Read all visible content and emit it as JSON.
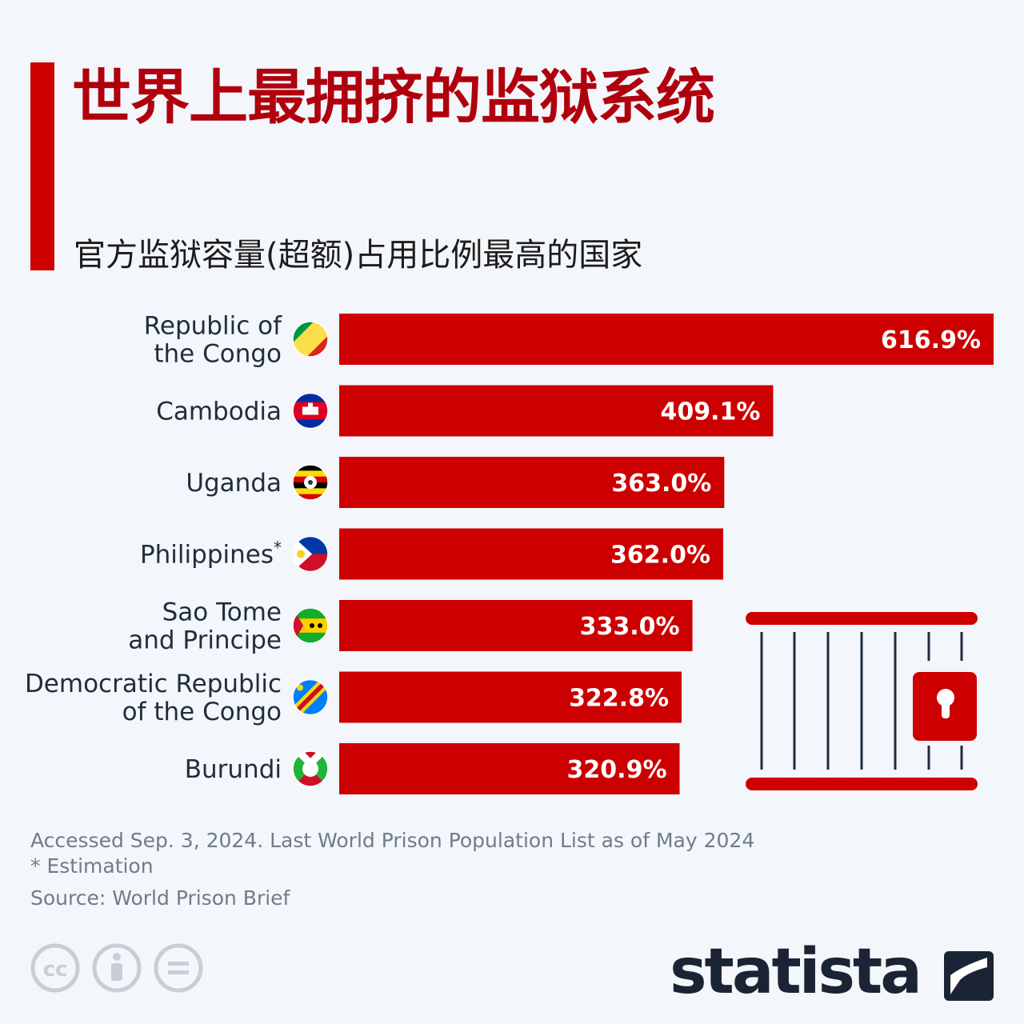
{
  "title": "世界上最拥挤的监狱系统",
  "subtitle": "官方监狱容量(超额)占用比例最高的国家",
  "colors": {
    "accent": "#cc0000",
    "title": "#b0000d",
    "text": "#1f2d3d",
    "muted": "#6f7c89",
    "background": "#f3f6fa"
  },
  "chart_data": {
    "type": "bar",
    "orientation": "horizontal",
    "unit": "%",
    "categories": [
      [
        "Republic of",
        "the Congo"
      ],
      [
        "Cambodia"
      ],
      [
        "Uganda"
      ],
      [
        "Philippines*"
      ],
      [
        "Sao Tome",
        "and Principe"
      ],
      [
        "Democratic Republic",
        "of the Congo"
      ],
      [
        "Burundi"
      ]
    ],
    "values": [
      616.9,
      409.1,
      363.0,
      362.0,
      333.0,
      322.8,
      320.9
    ],
    "value_labels": [
      "616.9%",
      "409.1%",
      "363.0%",
      "362.0%",
      "333.0%",
      "322.8%",
      "320.9%"
    ],
    "flags": [
      "congo-flag-icon",
      "cambodia-flag-icon",
      "uganda-flag-icon",
      "philippines-flag-icon",
      "sao-tome-flag-icon",
      "drc-flag-icon",
      "burundi-flag-icon"
    ],
    "xlim": [
      0,
      616.9
    ],
    "bar_color": "#cc0000"
  },
  "footer": {
    "note": "Accessed Sep. 3, 2024. Last World Prison Population List as of May 2024",
    "estimation": "* Estimation",
    "source": "Source: World Prison Brief"
  },
  "logo": {
    "text": "statista"
  }
}
